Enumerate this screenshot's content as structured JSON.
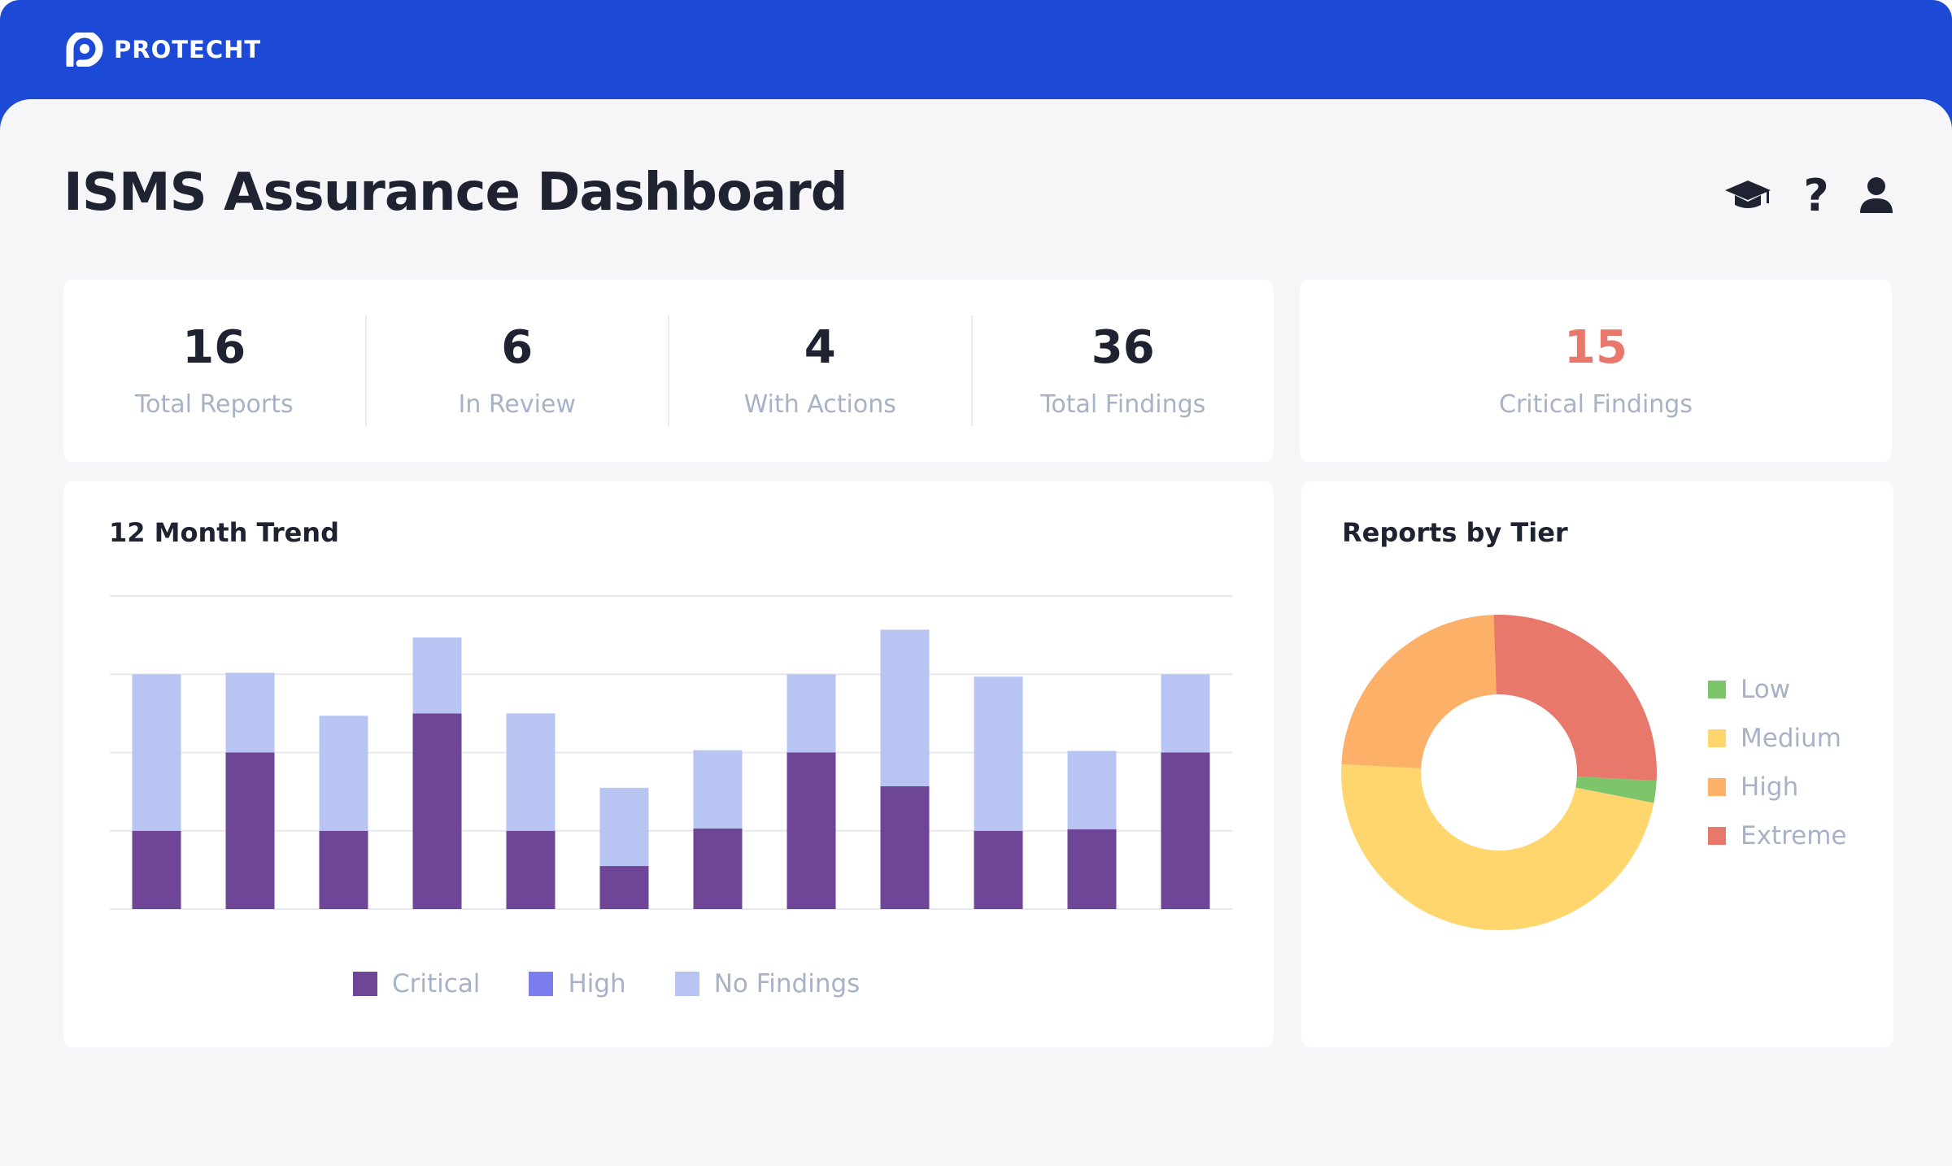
{
  "brand": {
    "name": "PROTECHT",
    "logo_icon": "protecht-logo-icon"
  },
  "page": {
    "title": "ISMS Assurance Dashboard"
  },
  "header_icons": {
    "learning": "graduation-cap-icon",
    "help_glyph": "?",
    "user": "user-icon"
  },
  "stats": [
    {
      "value": "16",
      "label": "Total Reports"
    },
    {
      "value": "6",
      "label": "In Review"
    },
    {
      "value": "4",
      "label": "With Actions"
    },
    {
      "value": "36",
      "label": "Total Findings"
    }
  ],
  "critical": {
    "value": "15",
    "label": "Critical Findings",
    "color": "#e8786b"
  },
  "trend": {
    "title": "12 Month Trend",
    "legend": [
      {
        "name": "Critical",
        "color": "#6f4598"
      },
      {
        "name": "High",
        "color": "#7c7ef0"
      },
      {
        "name": "No Findings",
        "color": "#b8c5f3"
      }
    ]
  },
  "tier": {
    "title": "Reports by Tier",
    "legend": [
      {
        "name": "Low",
        "color": "#7dc56b"
      },
      {
        "name": "Medium",
        "color": "#ffd56e"
      },
      {
        "name": "High",
        "color": "#fdb067"
      },
      {
        "name": "Extreme",
        "color": "#e8786b"
      }
    ]
  },
  "chart_data": [
    {
      "type": "bar",
      "stacked": true,
      "title": "12 Month Trend",
      "categories": [
        "",
        "",
        "",
        "",
        "",
        "",
        "",
        "",
        "",
        "",
        "",
        ""
      ],
      "series": [
        {
          "name": "Critical",
          "color": "#6f4598",
          "values": [
            1,
            2,
            1,
            2.5,
            1,
            0.55,
            1.03,
            2,
            1.57,
            1,
            1.02,
            2
          ]
        },
        {
          "name": "High",
          "color": "#7c7ef0",
          "values": [
            0,
            0,
            0,
            0,
            0,
            0,
            0,
            0,
            0,
            0,
            0,
            0
          ]
        },
        {
          "name": "No Findings",
          "color": "#b8c5f3",
          "values": [
            2,
            1.02,
            1.47,
            0.97,
            1.5,
            1,
            1,
            1,
            2,
            1.97,
            1,
            1
          ]
        }
      ],
      "ylim": [
        0,
        4
      ],
      "grid": true,
      "legend_position": "bottom"
    },
    {
      "type": "pie",
      "donut": true,
      "title": "Reports by Tier",
      "slices": [
        {
          "name": "Low",
          "value": 0.25,
          "color": "#7dc56b"
        },
        {
          "name": "Medium",
          "value": 0.5,
          "color": "#ffd56e"
        },
        {
          "name": "Medium",
          "value": 4.75,
          "color": "#ffd56e"
        },
        {
          "name": "High",
          "value": 2.6,
          "color": "#fdb067"
        },
        {
          "name": "Extreme",
          "value": 2.9,
          "color": "#e8786b"
        }
      ],
      "legend_position": "right"
    }
  ]
}
